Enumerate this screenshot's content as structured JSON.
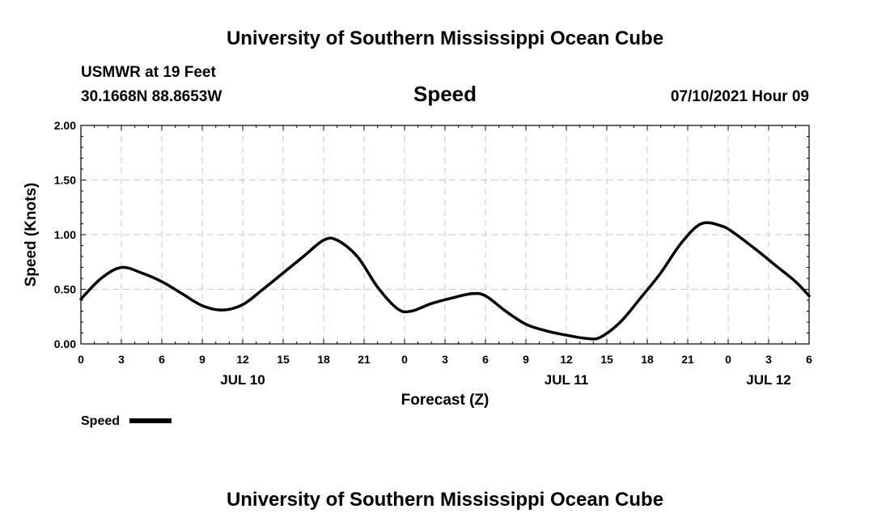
{
  "header": {
    "title": "University of Southern Mississippi Ocean Cube",
    "station": "USMWR at 19 Feet",
    "coordinates": "30.1668N  88.8653W",
    "timestamp": "07/10/2021 Hour 09"
  },
  "footer": {
    "title": "University of Southern Mississippi Ocean Cube"
  },
  "colors": {
    "series": "#000000",
    "grid": "#c8c8c8"
  },
  "chart_data": {
    "type": "line",
    "title": "Speed",
    "xlabel": "Forecast (Z)",
    "ylabel": "Speed (Knots)",
    "xlim": [
      0,
      54
    ],
    "ylim": [
      0,
      2
    ],
    "grid": true,
    "x_ticks": [
      0,
      3,
      6,
      9,
      12,
      15,
      18,
      21,
      24,
      27,
      30,
      33,
      36,
      39,
      42,
      45,
      48,
      51,
      54
    ],
    "x_tick_labels": [
      "0",
      "3",
      "6",
      "9",
      "12",
      "15",
      "18",
      "21",
      "0",
      "3",
      "6",
      "9",
      "12",
      "15",
      "18",
      "21",
      "0",
      "3",
      "6"
    ],
    "y_ticks": [
      0,
      0.5,
      1,
      1.5,
      2
    ],
    "y_tick_labels": [
      "0.00",
      "0.50",
      "1.00",
      "1.50",
      "2.00"
    ],
    "date_labels": [
      {
        "x": 12,
        "label": "JUL 10"
      },
      {
        "x": 36,
        "label": "JUL 11"
      },
      {
        "x": 51,
        "label": "JUL 12"
      }
    ],
    "legend": {
      "position": "bottom-left",
      "label": "Speed"
    },
    "series": [
      {
        "name": "Speed",
        "x": [
          0,
          1.5,
          3,
          4.5,
          6,
          7.5,
          9,
          10.5,
          12,
          13.5,
          15,
          16.5,
          18,
          19,
          20.5,
          22,
          23.5,
          24.5,
          26,
          27.5,
          29,
          30,
          31.5,
          33,
          34.5,
          36,
          37.5,
          38.5,
          40,
          41.5,
          43,
          44.5,
          46,
          47.5,
          48.5,
          50,
          51.5,
          53,
          54
        ],
        "values": [
          0.41,
          0.6,
          0.7,
          0.65,
          0.57,
          0.46,
          0.35,
          0.31,
          0.36,
          0.5,
          0.65,
          0.8,
          0.95,
          0.95,
          0.8,
          0.52,
          0.32,
          0.3,
          0.37,
          0.42,
          0.46,
          0.44,
          0.3,
          0.18,
          0.12,
          0.08,
          0.05,
          0.06,
          0.2,
          0.42,
          0.65,
          0.92,
          1.1,
          1.08,
          1.01,
          0.87,
          0.72,
          0.57,
          0.44
        ]
      }
    ]
  }
}
